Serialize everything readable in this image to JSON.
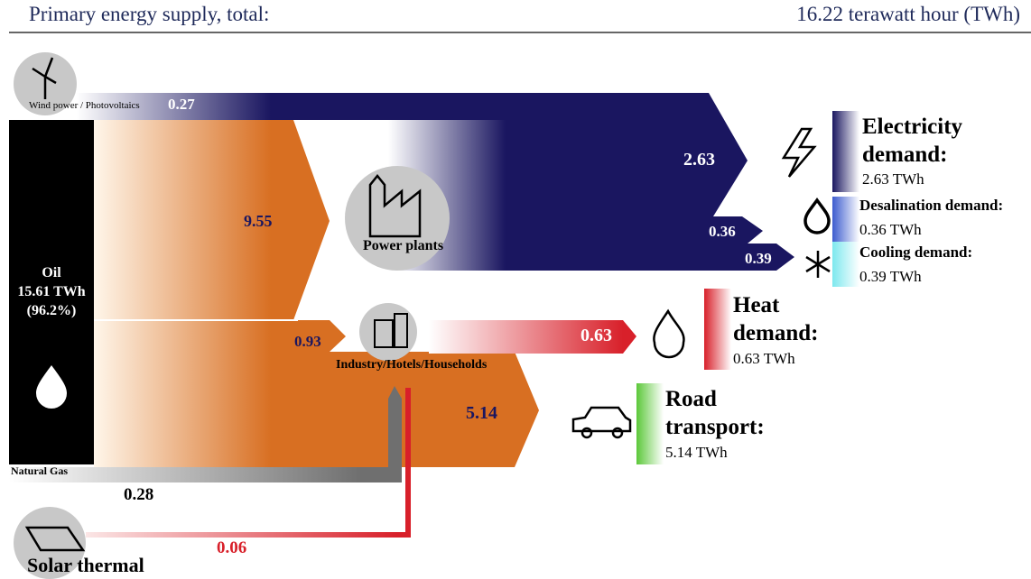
{
  "header": {
    "title": "Primary energy supply, total:",
    "total": "16.22 terawatt hour (TWh)"
  },
  "sources": [
    {
      "label": "Wind power / Photovoltaics"
    },
    {
      "label": "Oil",
      "value": "15.61 TWh",
      "share": "(96.2%)"
    },
    {
      "label": "Natural Gas"
    },
    {
      "label": "Solar thermal"
    }
  ],
  "nodes": [
    {
      "label": "Power plants"
    },
    {
      "label": "Industry/Hotels/Households"
    }
  ],
  "flows": [
    {
      "label": "0.27"
    },
    {
      "label": "9.55"
    },
    {
      "label": "0.93"
    },
    {
      "label": "0.28"
    },
    {
      "label": "0.06"
    },
    {
      "label": "2.63"
    },
    {
      "label": "0.36"
    },
    {
      "label": "0.39"
    },
    {
      "label": "0.63"
    },
    {
      "label": "5.14"
    }
  ],
  "demands": [
    {
      "title": "Electricity demand:",
      "value": "2.63 TWh"
    },
    {
      "title": "Desalination demand:",
      "value": "0.36 TWh"
    },
    {
      "title": "Cooling demand:",
      "value": "0.39 TWh"
    },
    {
      "title": "Heat demand:",
      "value": "0.63 TWh"
    },
    {
      "title": "Road transport:",
      "value": "5.14 TWh"
    }
  ]
}
